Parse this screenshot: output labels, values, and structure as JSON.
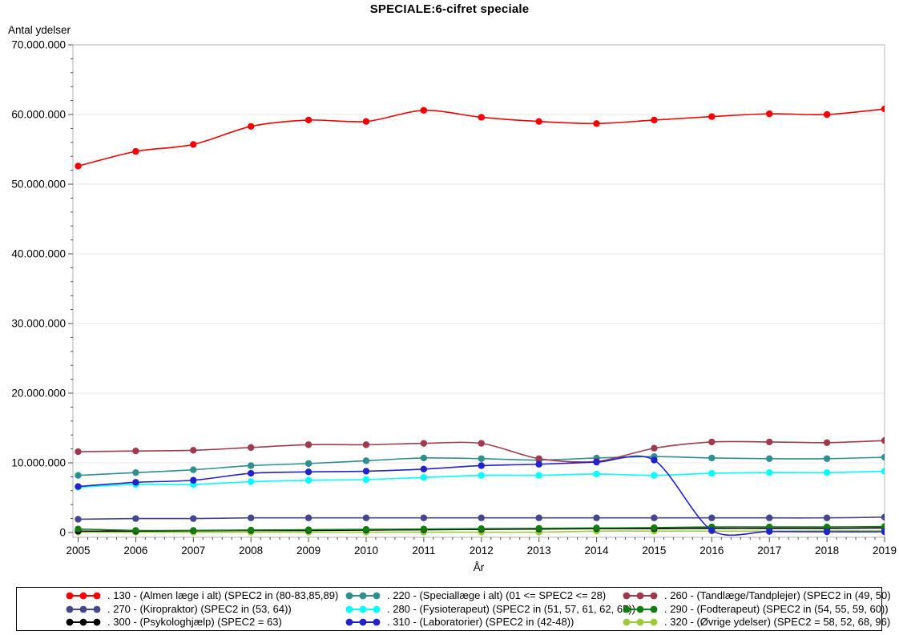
{
  "title": "SPECIALE:6-cifret speciale",
  "chart_data": {
    "type": "line",
    "title": "SPECIALE:6-cifret speciale",
    "xlabel": "År",
    "ylabel": "Antal ydelser",
    "x": [
      2005,
      2006,
      2007,
      2008,
      2009,
      2010,
      2011,
      2012,
      2013,
      2014,
      2015,
      2016,
      2017,
      2018,
      2019
    ],
    "ylim": [
      0,
      70000000
    ],
    "grid": "horizontal-major-only",
    "legend_position": "bottom-box-3-columns",
    "y_ticks": [
      {
        "value": 0,
        "label": "0"
      },
      {
        "value": 10000000,
        "label": "10.000.000"
      },
      {
        "value": 20000000,
        "label": "20.000.000"
      },
      {
        "value": 30000000,
        "label": "30.000.000"
      },
      {
        "value": 40000000,
        "label": "40.000.000"
      },
      {
        "value": 50000000,
        "label": "50.000.000"
      },
      {
        "value": 60000000,
        "label": "60.000.000"
      },
      {
        "value": 70000000,
        "label": "70.000.000"
      }
    ],
    "y_minor_per_major": 4,
    "x_minor_per_major": 5,
    "draw_order": [
      "270",
      "320",
      "300",
      "290",
      "280",
      "220",
      "260",
      "310",
      "130"
    ],
    "series": [
      {
        "id": "130",
        "label": ". 130 - (Almen læge i alt) (SPEC2 in (80-83,85,89)",
        "color": "#F40000",
        "values": [
          52600000,
          54700000,
          55700000,
          58300000,
          59200000,
          59000000,
          60600000,
          59600000,
          59000000,
          58700000,
          59200000,
          59700000,
          60100000,
          60000000,
          60800000
        ]
      },
      {
        "id": "220",
        "label": ". 220 - (Speciallæge i alt) (01 <= SPEC2 <= 28)",
        "color": "#2F8E8E",
        "values": [
          8200000,
          8600000,
          9000000,
          9600000,
          9900000,
          10300000,
          10700000,
          10600000,
          10400000,
          10700000,
          10900000,
          10700000,
          10600000,
          10600000,
          10800000
        ]
      },
      {
        "id": "260",
        "label": ". 260 - (Tandlæge/Tandplejer) (SPEC2  in (49, 50)",
        "color": "#9E3A4E",
        "values": [
          11600000,
          11700000,
          11800000,
          12200000,
          12600000,
          12600000,
          12800000,
          12800000,
          10600000,
          10200000,
          12100000,
          13000000,
          13000000,
          12900000,
          13200000
        ]
      },
      {
        "id": "270",
        "label": ". 270 - (Kiropraktor) (SPEC2 in (53, 64))",
        "color": "#46468C",
        "values": [
          1900000,
          2000000,
          2000000,
          2100000,
          2100000,
          2100000,
          2100000,
          2100000,
          2100000,
          2100000,
          2100000,
          2100000,
          2100000,
          2100000,
          2200000
        ]
      },
      {
        "id": "280",
        "label": ". 280 - (Fysioterapeut) (SPEC2 in (51, 57, 61, 62, 65))",
        "color": "#00FFFF",
        "values": [
          6500000,
          6900000,
          6900000,
          7300000,
          7500000,
          7600000,
          7900000,
          8200000,
          8200000,
          8400000,
          8200000,
          8500000,
          8600000,
          8600000,
          8800000
        ]
      },
      {
        "id": "290",
        "label": ". 290 - (Fodterapeut) (SPEC2 in (54, 55, 59, 60))",
        "color": "#127B12",
        "values": [
          500000,
          300000,
          300000,
          350000,
          400000,
          450000,
          500000,
          550000,
          600000,
          650000,
          700000,
          800000,
          800000,
          800000,
          850000
        ]
      },
      {
        "id": "300",
        "label": ". 300 - (Psykologhjælp) (SPEC2 = 63)",
        "color": "#000000",
        "values": [
          200000,
          200000,
          250000,
          300000,
          300000,
          350000,
          400000,
          450000,
          500000,
          550000,
          550000,
          600000,
          600000,
          600000,
          650000
        ]
      },
      {
        "id": "310",
        "label": ". 310 - (Laboratorier) (SPEC2 in (42-48))",
        "color": "#2222CC",
        "values": [
          6600000,
          7200000,
          7500000,
          8500000,
          8700000,
          8800000,
          9100000,
          9600000,
          9800000,
          10100000,
          10400000,
          300000,
          150000,
          100000,
          100000
        ]
      },
      {
        "id": "320",
        "label": ". 320 - (Øvrige ydelser) (SPEC2 = 58, 52, 68, 96)",
        "color": "#9BCB3B",
        "values": [
          50000,
          50000,
          50000,
          50000,
          50000,
          50000,
          50000,
          50000,
          50000,
          200000,
          200000,
          200000,
          200000,
          250000,
          250000
        ]
      }
    ],
    "style": {
      "frame_color": "#B3B3B3",
      "gridline_color": "#E9E9E9",
      "tick_color": "#4D4D4D",
      "background": "#FFFFFF"
    }
  }
}
